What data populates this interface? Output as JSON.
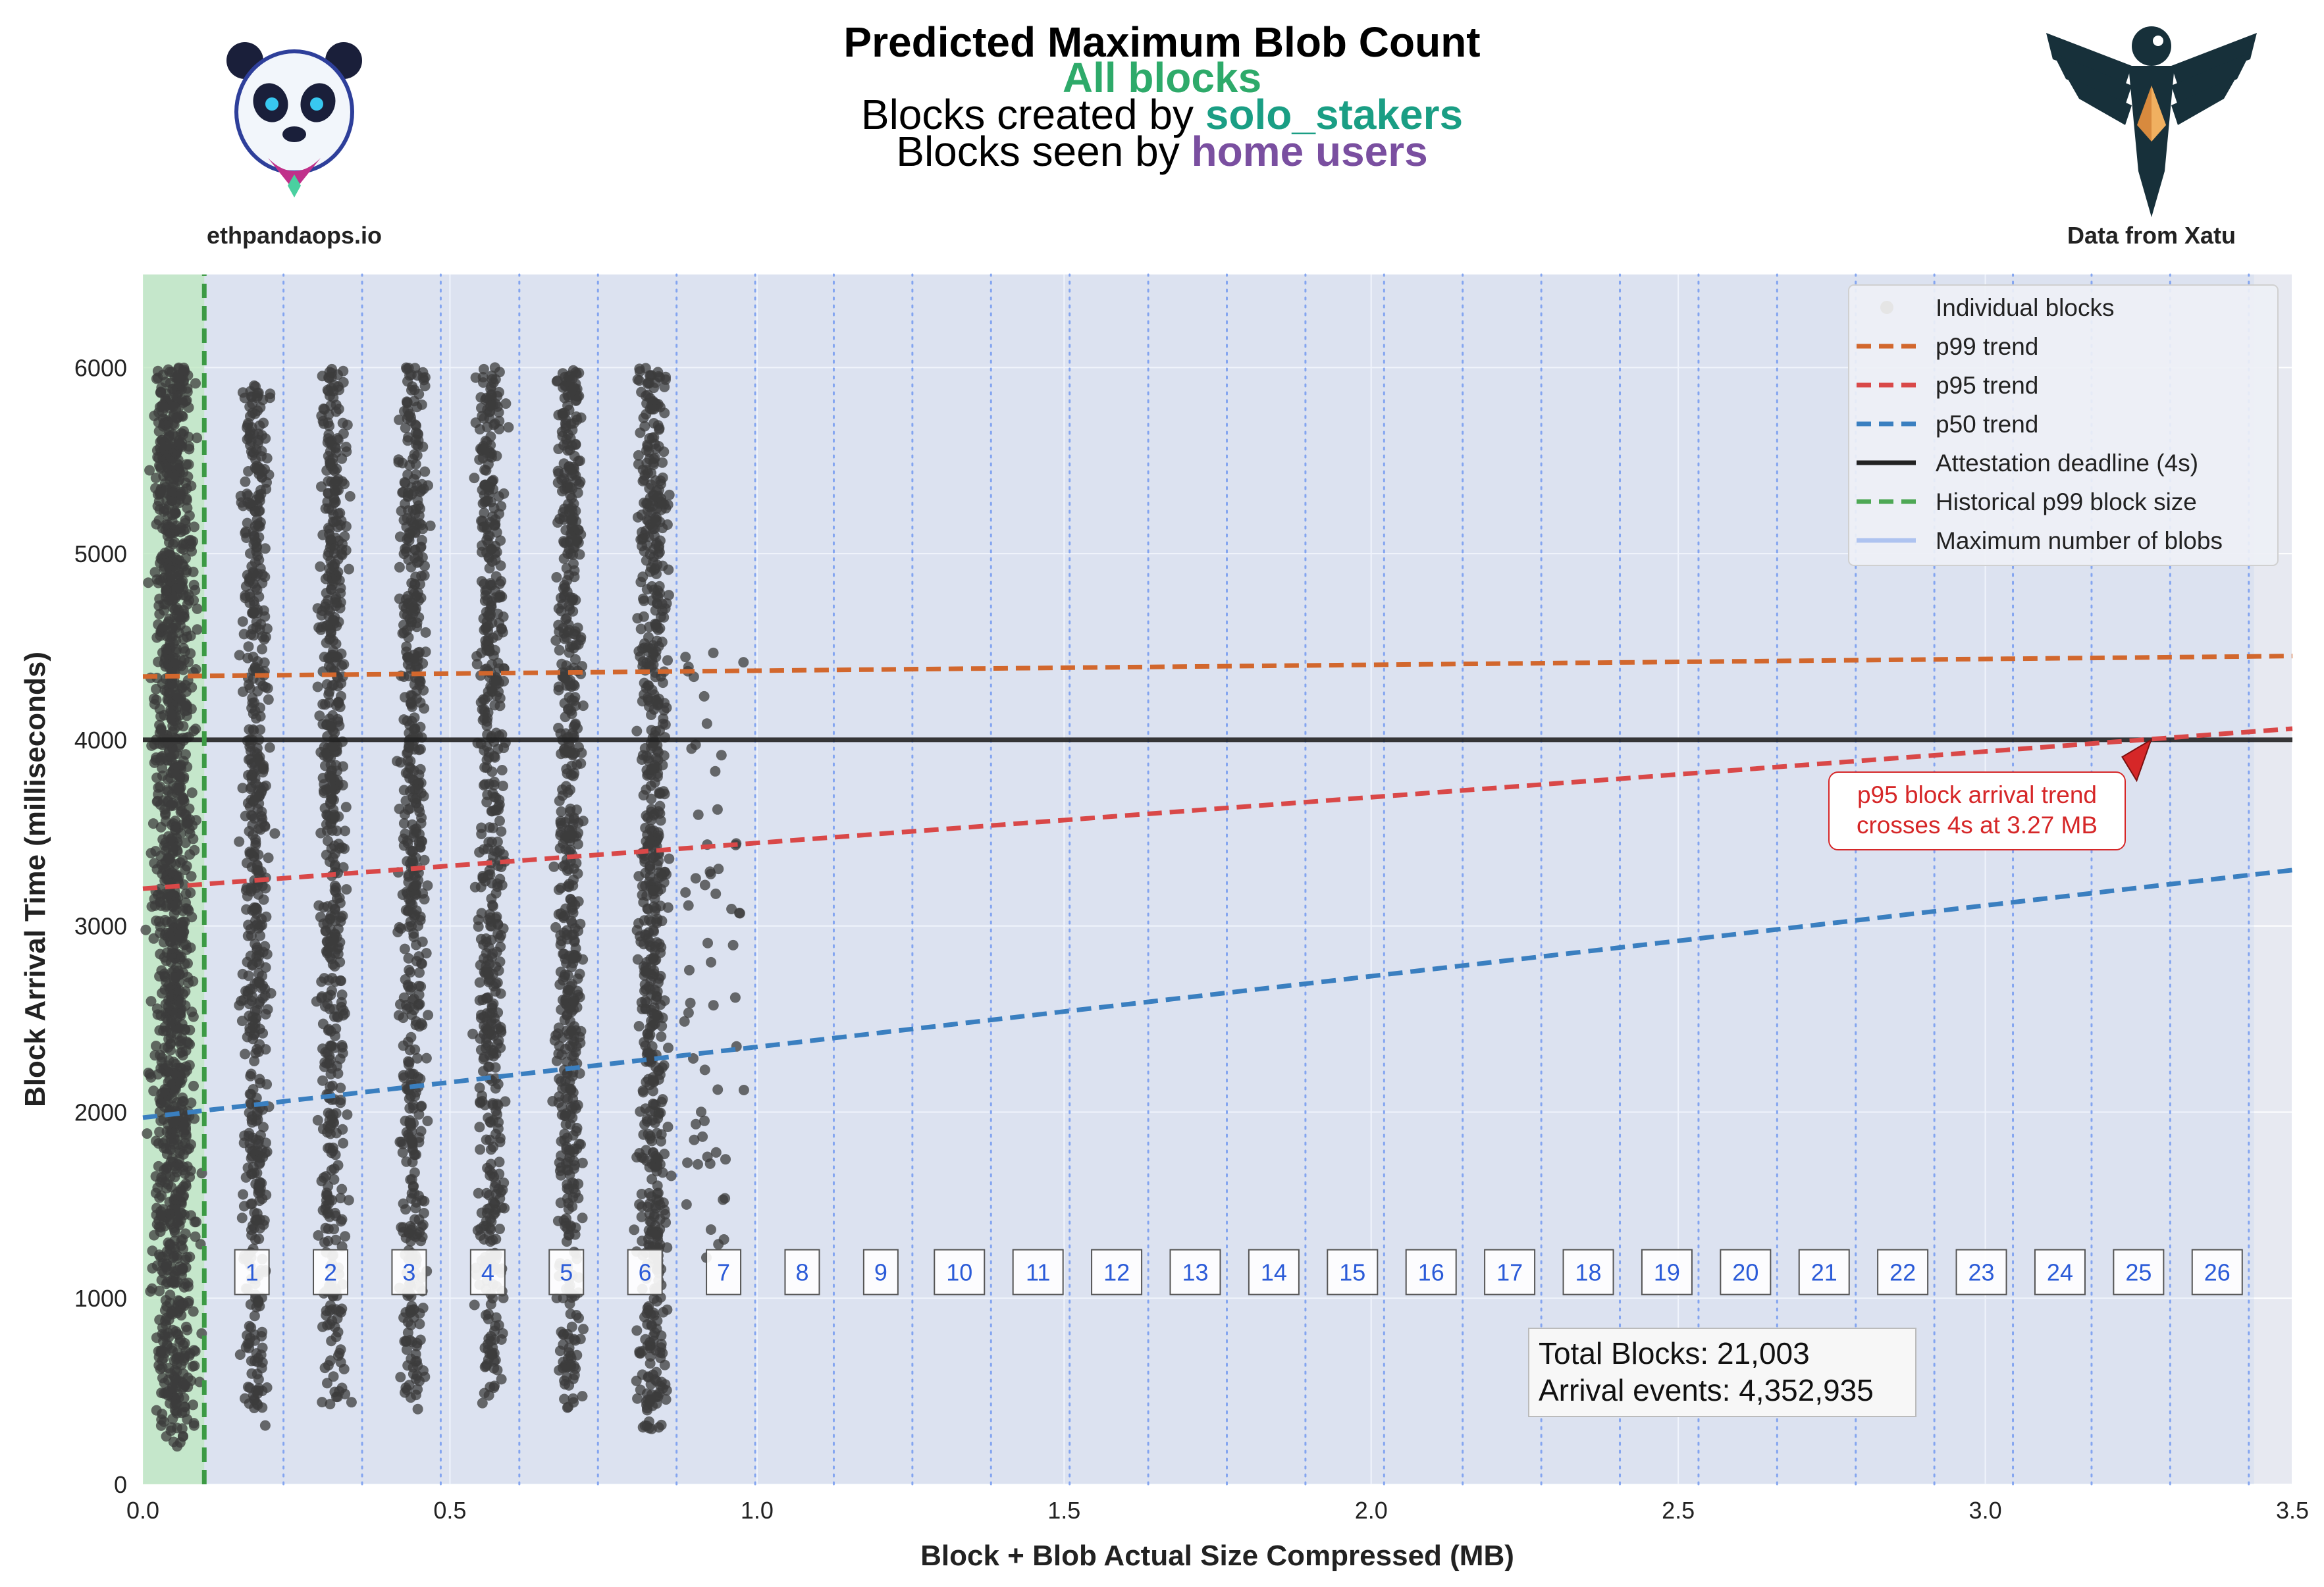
{
  "header": {
    "title": "Predicted Maximum Blob Count",
    "line2": "All blocks",
    "line3_prefix": "Blocks created by ",
    "line3_highlight": "solo_stakers",
    "line4_prefix": "Blocks seen by ",
    "line4_highlight": "home users",
    "left_caption": "ethpandaops.io",
    "right_caption": "Data from Xatu",
    "colors": {
      "line2": "#2eaa6a",
      "solo_stakers": "#1a9e84",
      "home_users": "#7a4fa0"
    }
  },
  "logos": {
    "left": "panda-logo-icon",
    "right": "eagle-logo-icon"
  },
  "annotation": {
    "line1": "p95 block arrival trend",
    "line2": "crosses 4s at 3.27 MB",
    "color": "#d62728"
  },
  "stats": {
    "line1": "Total Blocks: 21,003",
    "line2": "Arrival events: 4,352,935"
  },
  "legend": {
    "placement": "top-right",
    "items": [
      {
        "label": "Individual blocks",
        "kind": "dot",
        "color": "#e5e5e5"
      },
      {
        "label": "p99 trend",
        "kind": "dashed",
        "color": "#d2672d"
      },
      {
        "label": "p95 trend",
        "kind": "dashed",
        "color": "#d94848"
      },
      {
        "label": "p50 trend",
        "kind": "dashed",
        "color": "#3a7fc0"
      },
      {
        "label": "Attestation deadline (4s)",
        "kind": "solid",
        "color": "#222222"
      },
      {
        "label": "Historical p99 block size",
        "kind": "dashed",
        "color": "#4ea855"
      },
      {
        "label": "Maximum number of blobs",
        "kind": "solid",
        "color": "#aec3f0"
      }
    ]
  },
  "chart_data": {
    "type": "scatter",
    "title": "Predicted Maximum Blob Count",
    "xlabel": "Block + Blob Actual Size Compressed (MB)",
    "ylabel": "Block Arrival Time (milliseconds)",
    "xlim": [
      0.0,
      3.5
    ],
    "ylim": [
      0,
      6500
    ],
    "xticks": [
      0.0,
      0.5,
      1.0,
      1.5,
      2.0,
      2.5,
      3.0,
      3.5
    ],
    "xtick_labels": [
      "0.0",
      "0.5",
      "1.0",
      "1.5",
      "2.0",
      "2.5",
      "3.0",
      "3.5"
    ],
    "yticks": [
      0,
      1000,
      2000,
      3000,
      4000,
      5000,
      6000
    ],
    "ytick_labels": [
      "0",
      "1000",
      "2000",
      "3000",
      "4000",
      "5000",
      "6000"
    ],
    "grid": true,
    "historical_p99_block_size_mb": 0.1,
    "attestation_deadline_ms": 4000,
    "trends": [
      {
        "name": "p99 trend",
        "x": [
          0.0,
          3.5
        ],
        "y": [
          4340,
          4450
        ],
        "color": "#d2672d"
      },
      {
        "name": "p95 trend",
        "x": [
          0.0,
          3.5
        ],
        "y": [
          3200,
          4060
        ],
        "color": "#d94848"
      },
      {
        "name": "p50 trend",
        "x": [
          0.0,
          3.5
        ],
        "y": [
          1970,
          3300
        ],
        "color": "#3a7fc0"
      }
    ],
    "blob_lines_mb": [
      0.229,
      0.357,
      0.485,
      0.613,
      0.741,
      0.869,
      0.997,
      1.125,
      1.253,
      1.381,
      1.509,
      1.637,
      1.765,
      1.893,
      2.021,
      2.149,
      2.277,
      2.405,
      2.533,
      2.661,
      2.789,
      2.917,
      3.045,
      3.173,
      3.301,
      3.429
    ],
    "blob_labels": [
      "1",
      "2",
      "3",
      "4",
      "5",
      "6",
      "7",
      "8",
      "9",
      "10",
      "11",
      "12",
      "13",
      "14",
      "15",
      "16",
      "17",
      "18",
      "19",
      "20",
      "21",
      "22",
      "23",
      "24",
      "25",
      "26"
    ],
    "blob_label_y_ms": 1140,
    "clusters": [
      {
        "x": 0.05,
        "ymin": 200,
        "ymax": 6000,
        "spread": 0.045,
        "count": 1400
      },
      {
        "x": 0.183,
        "ymin": 280,
        "ymax": 5950,
        "spread": 0.03,
        "count": 560
      },
      {
        "x": 0.31,
        "ymin": 430,
        "ymax": 6000,
        "spread": 0.03,
        "count": 560
      },
      {
        "x": 0.44,
        "ymin": 400,
        "ymax": 6000,
        "spread": 0.03,
        "count": 560
      },
      {
        "x": 0.567,
        "ymin": 430,
        "ymax": 6000,
        "spread": 0.03,
        "count": 560
      },
      {
        "x": 0.695,
        "ymin": 400,
        "ymax": 6000,
        "spread": 0.03,
        "count": 600
      },
      {
        "x": 0.83,
        "ymin": 280,
        "ymax": 6000,
        "spread": 0.033,
        "count": 700
      }
    ],
    "scatter_color": "#3c3c3c",
    "crossing": {
      "x_mb": 3.27,
      "y_ms": 4000
    }
  }
}
